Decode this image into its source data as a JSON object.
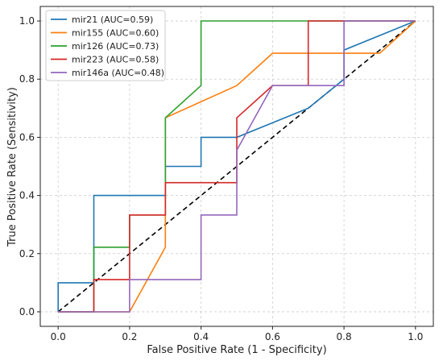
{
  "chart_data": {
    "type": "line",
    "xlabel": "False Positive Rate (1 - Specificity)",
    "ylabel": "True Positive Rate (Sensitivity)",
    "xlim": [
      -0.05,
      1.05
    ],
    "ylim": [
      -0.05,
      1.05
    ],
    "xticks": [
      0.0,
      0.2,
      0.4,
      0.6,
      0.8,
      1.0
    ],
    "yticks": [
      0.0,
      0.2,
      0.4,
      0.6,
      0.8,
      1.0
    ],
    "xtick_labels": [
      "0.0",
      "0.2",
      "0.4",
      "0.6",
      "0.8",
      "1.0"
    ],
    "ytick_labels": [
      "0.0",
      "0.2",
      "0.4",
      "0.6",
      "0.8",
      "1.0"
    ],
    "grid": true,
    "legend_position": "top-left",
    "reference_line": {
      "x": [
        0,
        1
      ],
      "y": [
        0,
        1
      ],
      "style": "dashed",
      "color": "#000000"
    },
    "series": [
      {
        "name": "mir21 (AUC=0.59)",
        "color": "#1f77b4",
        "x": [
          0,
          0,
          0.1,
          0.1,
          0.3,
          0.3,
          0.4,
          0.4,
          0.5,
          0.7,
          0.8,
          0.8,
          1.0
        ],
        "y": [
          0,
          0.1,
          0.1,
          0.4,
          0.4,
          0.5,
          0.5,
          0.6,
          0.6,
          0.7,
          0.8,
          0.9,
          1.0
        ]
      },
      {
        "name": "mir155 (AUC=0.60)",
        "color": "#ff7f0e",
        "x": [
          0,
          0.2,
          0.3,
          0.3,
          0.5,
          0.6,
          0.9,
          1.0
        ],
        "y": [
          0,
          0,
          0.222,
          0.667,
          0.778,
          0.889,
          0.889,
          1.0
        ]
      },
      {
        "name": "mir126 (AUC=0.73)",
        "color": "#2ca02c",
        "x": [
          0,
          0.1,
          0.1,
          0.2,
          0.2,
          0.3,
          0.3,
          0.4,
          0.4,
          1.0
        ],
        "y": [
          0,
          0,
          0.222,
          0.222,
          0.333,
          0.333,
          0.667,
          0.778,
          1.0,
          1.0
        ]
      },
      {
        "name": "mir223 (AUC=0.58)",
        "color": "#d62728",
        "x": [
          0,
          0.1,
          0.1,
          0.2,
          0.2,
          0.3,
          0.3,
          0.5,
          0.5,
          0.6,
          0.7,
          0.7,
          1.0
        ],
        "y": [
          0,
          0,
          0.111,
          0.111,
          0.333,
          0.333,
          0.444,
          0.444,
          0.667,
          0.778,
          0.778,
          1.0,
          1.0
        ]
      },
      {
        "name": "mir146a (AUC=0.48)",
        "color": "#9467bd",
        "x": [
          0,
          0.2,
          0.2,
          0.4,
          0.4,
          0.5,
          0.5,
          0.6,
          0.8,
          0.8,
          1.0
        ],
        "y": [
          0,
          0,
          0.111,
          0.111,
          0.333,
          0.333,
          0.556,
          0.778,
          0.778,
          1.0,
          1.0
        ]
      }
    ]
  }
}
